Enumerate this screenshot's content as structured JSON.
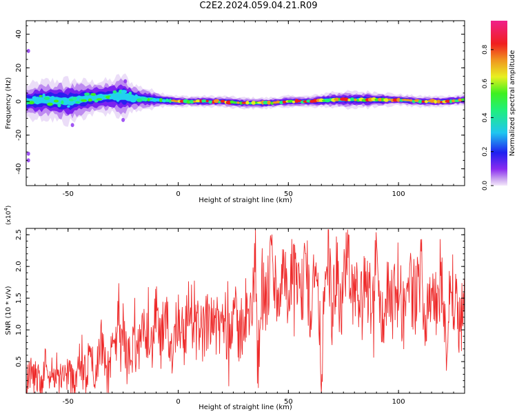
{
  "figure": {
    "title": "C2E2.2024.059.04.21.R09",
    "series_color": "#ee2a2a"
  },
  "chart_data": [
    {
      "type": "heatmap",
      "title": "C2E2.2024.059.04.21.R09",
      "xlabel": "Height of straight line (km)",
      "ylabel": "Frequency (Hz)",
      "xlim": [
        -69,
        130
      ],
      "ylim": [
        -50,
        48
      ],
      "xticks": [
        -50,
        0,
        50,
        100
      ],
      "yticks": [
        -40,
        -20,
        0,
        20,
        40
      ],
      "colorbar": {
        "label": "Normalized spectral amplitude",
        "ticks": [
          0.0,
          0.2,
          0.4,
          0.6,
          0.8
        ],
        "tick_labels": [
          "0.0",
          "0.2",
          "0.4",
          "0.6",
          "0.8"
        ],
        "range": [
          0,
          0.97
        ],
        "colormap": "rainbow (purple→blue→cyan→green→yellow→red→magenta)"
      },
      "ridge": {
        "description": "spectral energy concentrated near 0 Hz",
        "x": [
          -69,
          -60,
          -50,
          -40,
          -30,
          -25,
          -20,
          -10,
          0,
          10,
          20,
          30,
          40,
          50,
          60,
          70,
          80,
          90,
          100,
          110,
          120,
          130
        ],
        "center_freq": [
          0,
          1,
          0,
          2,
          3,
          3,
          2,
          1,
          0,
          0,
          0,
          -1,
          -1,
          0,
          0,
          1,
          1,
          1,
          1,
          0,
          0,
          1
        ],
        "band_halfwidth": [
          6,
          7,
          8,
          6,
          6,
          8,
          5,
          3,
          2,
          2,
          2,
          2,
          2,
          2,
          2,
          3,
          3,
          3,
          2,
          2,
          2,
          2
        ]
      },
      "outliers": [
        {
          "x": -68,
          "freq": 30
        },
        {
          "x": -68,
          "freq": -31
        },
        {
          "x": -68,
          "freq": -35
        },
        {
          "x": -48,
          "freq": -14
        },
        {
          "x": -25,
          "freq": -11
        },
        {
          "x": -24,
          "freq": 12
        }
      ]
    },
    {
      "type": "line",
      "xlabel": "Height of straight line (km)",
      "ylabel": "SNR (10 * v/v)",
      "y_multiplier": "(x10^4)",
      "xlim": [
        -69,
        130
      ],
      "ylim": [
        0,
        2.6
      ],
      "xticks": [
        -50,
        0,
        50,
        100
      ],
      "yticks": [
        0.5,
        1.0,
        1.5,
        2.0,
        2.5
      ],
      "series": [
        {
          "color": "#ee2a2a",
          "x": [
            -69,
            -66,
            -62,
            -60,
            -58,
            -55,
            -52,
            -50,
            -48,
            -45,
            -42,
            -40,
            -38,
            -35,
            -32,
            -30,
            -28,
            -27,
            -26,
            -25,
            -23,
            -20,
            -18,
            -15,
            -12,
            -10,
            -8,
            -5,
            -3,
            0,
            3,
            5,
            8,
            10,
            12,
            15,
            18,
            20,
            23,
            25,
            27,
            30,
            32,
            34,
            35,
            36,
            38,
            40,
            42,
            45,
            48,
            50,
            52,
            55,
            58,
            60,
            62,
            65,
            68,
            70,
            72,
            74,
            75,
            76,
            77,
            78,
            80,
            82,
            85,
            88,
            90,
            92,
            95,
            98,
            100,
            102,
            105,
            108,
            110,
            112,
            115,
            118,
            120,
            122,
            124,
            125,
            126,
            128,
            130
          ],
          "y": [
            0.18,
            0.35,
            0.12,
            0.55,
            0.28,
            0.42,
            0.2,
            0.38,
            0.15,
            0.48,
            0.25,
            0.55,
            0.3,
            0.85,
            0.32,
            0.6,
            0.9,
            1.38,
            0.55,
            1.1,
            0.45,
            0.8,
            0.62,
            1.05,
            0.7,
            1.3,
            0.75,
            1.1,
            0.68,
            1.25,
            0.85,
            1.45,
            0.9,
            1.2,
            0.8,
            1.35,
            0.95,
            1.15,
            1.0,
            1.4,
            0.9,
            1.2,
            1.05,
            1.5,
            2.48,
            0.32,
            1.85,
            1.3,
            2.15,
            1.5,
            1.9,
            1.25,
            2.0,
            1.4,
            1.95,
            1.3,
            2.1,
            0.5,
            2.3,
            1.2,
            2.0,
            1.1,
            1.6,
            2.05,
            2.6,
            1.3,
            1.9,
            1.15,
            1.8,
            1.4,
            2.18,
            1.1,
            1.6,
            1.4,
            1.9,
            1.2,
            1.75,
            1.45,
            1.95,
            1.3,
            1.7,
            1.2,
            1.85,
            0.6,
            2.18,
            1.2,
            1.75,
            1.05,
            1.45
          ]
        }
      ]
    }
  ]
}
